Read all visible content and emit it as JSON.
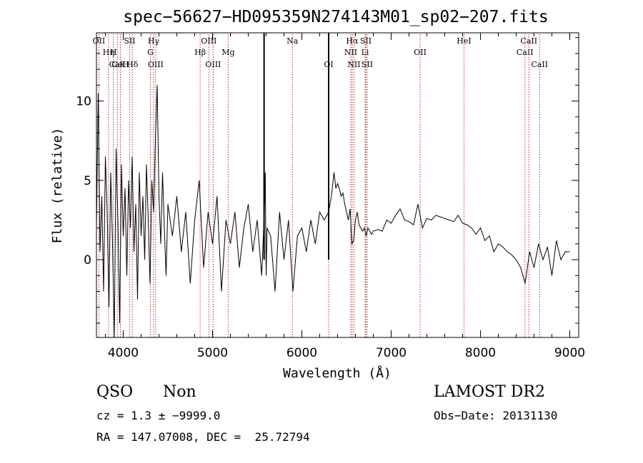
{
  "chart_data": {
    "type": "line",
    "title": "spec−56627−HD095359N274143M01_sp02−207.fits",
    "xlabel": "Wavelength (Å)",
    "ylabel": "Flux (relative)",
    "xlim": [
      3700,
      9100
    ],
    "ylim": [
      -4.9,
      14.3
    ],
    "x_ticks": [
      4000,
      5000,
      6000,
      7000,
      8000,
      9000
    ],
    "y_ticks": [
      0,
      5,
      10
    ],
    "grid": false,
    "series": [
      {
        "x": [
          3700,
          3720,
          3740,
          3760,
          3780,
          3800,
          3820,
          3840,
          3860,
          3880,
          3900,
          3920,
          3940,
          3960,
          3980,
          4000,
          4020,
          4040,
          4060,
          4080,
          4100,
          4120,
          4140,
          4160,
          4180,
          4200,
          4220,
          4240,
          4260,
          4280,
          4300,
          4320,
          4340,
          4360,
          4380,
          4400,
          4420,
          4440,
          4460,
          4480,
          4500,
          4550,
          4600,
          4650,
          4700,
          4750,
          4800,
          4850,
          4900,
          4950,
          5000,
          5050,
          5100,
          5150,
          5200,
          5250,
          5300,
          5350,
          5400,
          5450,
          5500,
          5550,
          5580,
          5590,
          5600,
          5610,
          5650,
          5700,
          5750,
          5800,
          5850,
          5900,
          5950,
          6000,
          6050,
          6100,
          6150,
          6200,
          6250,
          6300,
          6330,
          6350,
          6360,
          6370,
          6380,
          6400,
          6420,
          6440,
          6460,
          6480,
          6500,
          6520,
          6540,
          6560,
          6580,
          6600,
          6620,
          6640,
          6660,
          6680,
          6700,
          6720,
          6740,
          6760,
          6780,
          6800,
          6850,
          6900,
          6950,
          7000,
          7050,
          7100,
          7150,
          7200,
          7250,
          7300,
          7350,
          7400,
          7450,
          7500,
          7550,
          7600,
          7650,
          7700,
          7750,
          7800,
          7850,
          7900,
          7950,
          8000,
          8050,
          8100,
          8150,
          8200,
          8250,
          8300,
          8350,
          8400,
          8450,
          8500,
          8550,
          8600,
          8650,
          8700,
          8750,
          8800,
          8850,
          8900,
          8950,
          9000
        ],
        "values": [
          2.0,
          10.5,
          0.5,
          4.0,
          -2.0,
          6.5,
          3.0,
          -3.0,
          5.5,
          1.0,
          -4.9,
          7.0,
          2.5,
          -4.0,
          6.0,
          1.5,
          4.5,
          -1.0,
          5.0,
          2.0,
          6.5,
          0.5,
          3.5,
          -2.5,
          5.5,
          1.5,
          4.0,
          0.0,
          6.0,
          2.5,
          -1.5,
          5.0,
          3.0,
          7.5,
          11.0,
          4.0,
          1.0,
          5.5,
          2.0,
          -1.0,
          3.5,
          1.5,
          4.0,
          0.5,
          3.0,
          -1.5,
          2.5,
          5.0,
          -0.5,
          3.0,
          1.0,
          4.0,
          -2.0,
          2.5,
          1.0,
          3.0,
          -0.5,
          2.0,
          3.5,
          0.5,
          2.5,
          -1.0,
          3.0,
          5.5,
          -1.0,
          2.0,
          1.5,
          -2.0,
          3.0,
          0.0,
          2.5,
          -2.0,
          1.5,
          2.0,
          0.5,
          2.5,
          1.0,
          3.0,
          2.5,
          3.0,
          4.0,
          5.0,
          5.5,
          5.0,
          4.5,
          4.8,
          4.5,
          4.0,
          4.2,
          3.5,
          3.0,
          2.5,
          3.2,
          1.0,
          1.2,
          2.5,
          3.0,
          2.2,
          2.0,
          1.8,
          2.0,
          1.5,
          2.0,
          1.8,
          1.6,
          1.8,
          1.9,
          1.8,
          2.5,
          2.3,
          2.8,
          3.2,
          2.5,
          2.4,
          2.2,
          3.5,
          2.0,
          2.6,
          2.5,
          2.8,
          2.7,
          2.6,
          2.5,
          2.4,
          2.8,
          2.3,
          2.2,
          2.0,
          1.6,
          2.0,
          1.2,
          1.5,
          0.5,
          1.0,
          0.8,
          0.5,
          0.3,
          0.0,
          -0.5,
          -1.5,
          0.5,
          -0.5,
          1.0,
          0.0,
          0.8,
          -1.0,
          1.2,
          0.0,
          0.5,
          0.5
        ]
      }
    ],
    "spikes": [
      {
        "x": 5577,
        "value": 14.3
      },
      {
        "x": 6300,
        "value": 14.3
      }
    ],
    "line_markers": [
      {
        "label": "OII",
        "x": 3727,
        "row": 0
      },
      {
        "label": "Hη",
        "x": 3835,
        "row": 1
      },
      {
        "label": "H",
        "x": 3889,
        "row": 1
      },
      {
        "label": "CaK",
        "x": 3934,
        "row": 2
      },
      {
        "label": "CaH",
        "x": 3968,
        "row": 2
      },
      {
        "label": "SII",
        "x": 4072,
        "row": 0
      },
      {
        "label": "Hδ",
        "x": 4102,
        "row": 2
      },
      {
        "label": "Hγ",
        "x": 4340,
        "row": 0
      },
      {
        "label": "G",
        "x": 4304,
        "row": 1
      },
      {
        "label": "OIII",
        "x": 4363,
        "row": 2
      },
      {
        "label": "Hβ",
        "x": 4861,
        "row": 1
      },
      {
        "label": "OIII",
        "x": 4959,
        "row": 0
      },
      {
        "label": "OIII",
        "x": 5007,
        "row": 2
      },
      {
        "label": "Mg",
        "x": 5175,
        "row": 1
      },
      {
        "label": "Na",
        "x": 5894,
        "row": 0
      },
      {
        "label": "OI",
        "x": 6300,
        "row": 2
      },
      {
        "label": "Hα",
        "x": 6563,
        "row": 0
      },
      {
        "label": "NII",
        "x": 6548,
        "row": 1
      },
      {
        "label": "NII",
        "x": 6583,
        "row": 2
      },
      {
        "label": "SII",
        "x": 6716,
        "row": 0
      },
      {
        "label": "Li",
        "x": 6708,
        "row": 1
      },
      {
        "label": "SII",
        "x": 6731,
        "row": 2
      },
      {
        "label": "OII",
        "x": 7325,
        "row": 1
      },
      {
        "label": "HeI",
        "x": 7816,
        "row": 0
      },
      {
        "label": "CaII",
        "x": 8498,
        "row": 1
      },
      {
        "label": "CaII",
        "x": 8542,
        "row": 0
      },
      {
        "label": "CaII",
        "x": 8662,
        "row": 2
      }
    ]
  },
  "info": {
    "class": "QSO",
    "subclass": "Non",
    "cz": "cz = 1.3 ± −9999.0",
    "coords": "RA = 147.07008, DEC =  25.72794",
    "survey": "LAMOST DR2",
    "obs_date": "Obs−Date: 20131130"
  }
}
